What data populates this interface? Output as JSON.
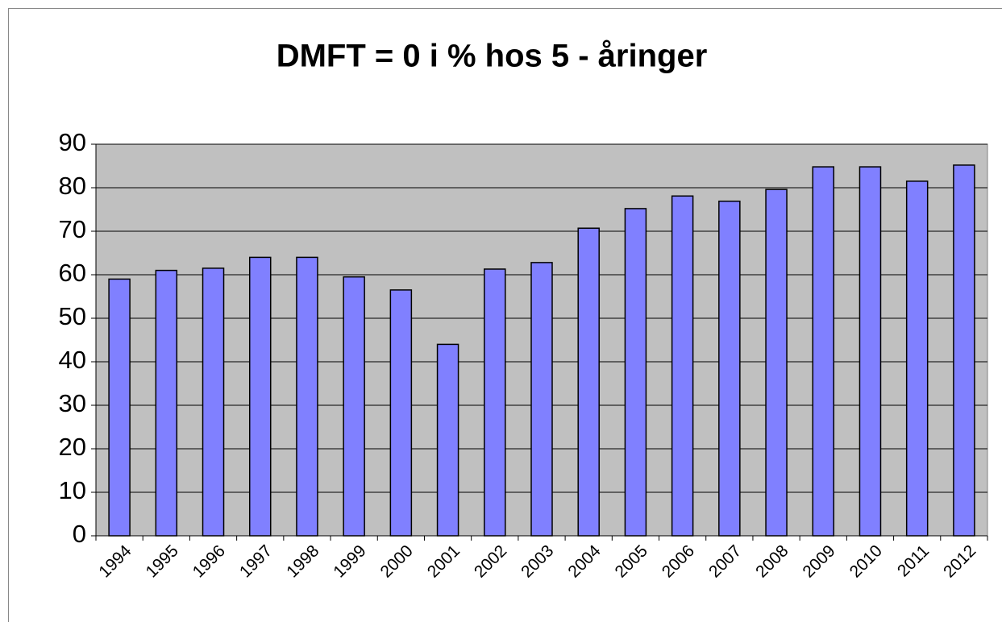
{
  "chart_data": {
    "type": "bar",
    "title": "DMFT = 0 i % hos 5 - åringer",
    "categories": [
      "1994",
      "1995",
      "1996",
      "1997",
      "1998",
      "1999",
      "2000",
      "2001",
      "2002",
      "2003",
      "2004",
      "2005",
      "2006",
      "2007",
      "2008",
      "2009",
      "2010",
      "2011",
      "2012"
    ],
    "values": [
      59,
      61,
      61.5,
      64,
      64,
      59.5,
      56.5,
      44,
      61.3,
      62.8,
      70.7,
      75.2,
      78.1,
      76.9,
      79.6,
      84.8,
      84.8,
      81.5,
      85.2
    ],
    "color": "#8080ff",
    "plot_background": "#c0c0c0",
    "ylim": [
      0,
      90
    ],
    "yticks": [
      0,
      10,
      20,
      30,
      40,
      50,
      60,
      70,
      80,
      90
    ],
    "grid": true
  }
}
